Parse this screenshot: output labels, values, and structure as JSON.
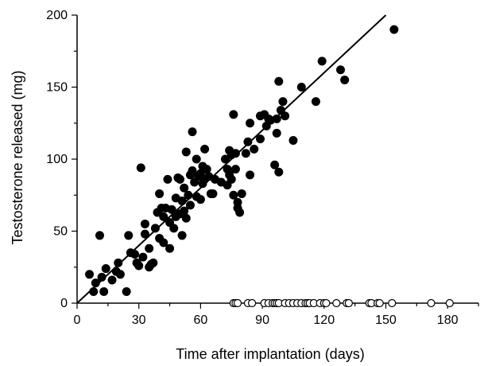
{
  "chart_data": {
    "type": "scatter",
    "xlabel": "Time after implantation (days)",
    "ylabel": "Testosterone released (mg)",
    "xlim": [
      0,
      195
    ],
    "ylim": [
      0,
      200
    ],
    "x_ticks": [
      0,
      30,
      60,
      90,
      120,
      150,
      180
    ],
    "y_ticks": [
      0,
      50,
      100,
      150,
      200
    ],
    "grid": false,
    "series": [
      {
        "marker": "filled-circle",
        "color": "#000000",
        "points": [
          [
            6,
            20
          ],
          [
            8,
            8
          ],
          [
            9,
            14
          ],
          [
            11,
            47
          ],
          [
            12,
            18
          ],
          [
            13,
            8
          ],
          [
            14,
            24
          ],
          [
            17,
            16
          ],
          [
            19,
            22
          ],
          [
            20,
            28
          ],
          [
            21,
            20
          ],
          [
            24,
            8
          ],
          [
            25,
            47
          ],
          [
            26,
            35
          ],
          [
            28,
            34
          ],
          [
            29,
            28
          ],
          [
            30,
            26
          ],
          [
            31,
            94
          ],
          [
            32,
            32
          ],
          [
            33,
            48
          ],
          [
            33,
            55
          ],
          [
            35,
            38
          ],
          [
            35,
            25
          ],
          [
            36,
            27
          ],
          [
            37,
            28
          ],
          [
            38,
            52
          ],
          [
            39,
            63
          ],
          [
            40,
            45
          ],
          [
            40,
            76
          ],
          [
            41,
            66
          ],
          [
            42,
            42
          ],
          [
            42,
            60
          ],
          [
            43,
            66
          ],
          [
            44,
            86
          ],
          [
            45,
            56
          ],
          [
            45,
            38
          ],
          [
            46,
            65
          ],
          [
            47,
            52
          ],
          [
            48,
            60
          ],
          [
            48,
            73
          ],
          [
            49,
            87
          ],
          [
            50,
            62
          ],
          [
            50,
            86
          ],
          [
            51,
            47
          ],
          [
            51,
            71
          ],
          [
            52,
            64
          ],
          [
            52,
            80
          ],
          [
            53,
            105
          ],
          [
            53,
            59
          ],
          [
            54,
            75
          ],
          [
            55,
            89
          ],
          [
            55,
            68
          ],
          [
            56,
            119
          ],
          [
            56,
            92
          ],
          [
            57,
            84
          ],
          [
            58,
            74
          ],
          [
            58,
            100
          ],
          [
            59,
            88
          ],
          [
            60,
            72
          ],
          [
            60,
            90
          ],
          [
            61,
            83
          ],
          [
            61,
            95
          ],
          [
            62,
            107
          ],
          [
            62,
            86
          ],
          [
            63,
            93
          ],
          [
            64,
            88
          ],
          [
            65,
            76
          ],
          [
            66,
            76
          ],
          [
            67,
            86
          ],
          [
            70,
            84
          ],
          [
            72,
            100
          ],
          [
            73,
            93
          ],
          [
            73,
            82
          ],
          [
            74,
            89
          ],
          [
            74,
            106
          ],
          [
            75,
            86
          ],
          [
            75,
            103
          ],
          [
            76,
            131
          ],
          [
            76,
            75
          ],
          [
            77,
            104
          ],
          [
            77,
            93
          ],
          [
            78,
            70
          ],
          [
            78,
            66
          ],
          [
            79,
            63
          ],
          [
            80,
            76
          ],
          [
            82,
            104
          ],
          [
            83,
            112
          ],
          [
            84,
            89
          ],
          [
            84,
            125
          ],
          [
            86,
            107
          ],
          [
            89,
            114
          ],
          [
            89,
            130
          ],
          [
            91,
            131
          ],
          [
            92,
            123
          ],
          [
            93,
            128
          ],
          [
            94,
            127
          ],
          [
            96,
            96
          ],
          [
            97,
            128
          ],
          [
            97,
            118
          ],
          [
            98,
            154
          ],
          [
            98,
            91
          ],
          [
            99,
            134
          ],
          [
            100,
            140
          ],
          [
            101,
            130
          ],
          [
            105,
            113
          ],
          [
            109,
            150
          ],
          [
            116,
            140
          ],
          [
            119,
            168
          ],
          [
            128,
            162
          ],
          [
            130,
            155
          ],
          [
            154,
            190
          ]
        ]
      },
      {
        "marker": "open-circle",
        "color": "#000000",
        "points": [
          [
            76,
            0
          ],
          [
            77,
            0
          ],
          [
            78,
            0
          ],
          [
            83,
            0
          ],
          [
            85,
            0
          ],
          [
            91,
            0
          ],
          [
            93,
            0
          ],
          [
            95,
            0
          ],
          [
            96,
            0
          ],
          [
            97,
            0
          ],
          [
            98,
            0
          ],
          [
            101,
            0
          ],
          [
            103,
            0
          ],
          [
            105,
            0
          ],
          [
            107,
            0
          ],
          [
            109,
            0
          ],
          [
            111,
            0
          ],
          [
            112,
            0
          ],
          [
            113,
            0
          ],
          [
            115,
            0
          ],
          [
            118,
            0
          ],
          [
            120,
            0
          ],
          [
            121,
            0
          ],
          [
            126,
            0
          ],
          [
            131,
            0
          ],
          [
            132,
            0
          ],
          [
            142,
            0
          ],
          [
            143,
            0
          ],
          [
            146,
            0
          ],
          [
            147,
            0
          ],
          [
            153,
            0
          ],
          [
            172,
            0
          ],
          [
            181,
            0
          ]
        ]
      }
    ],
    "regression_line": {
      "x": [
        0,
        150
      ],
      "y": [
        0,
        200
      ]
    }
  }
}
